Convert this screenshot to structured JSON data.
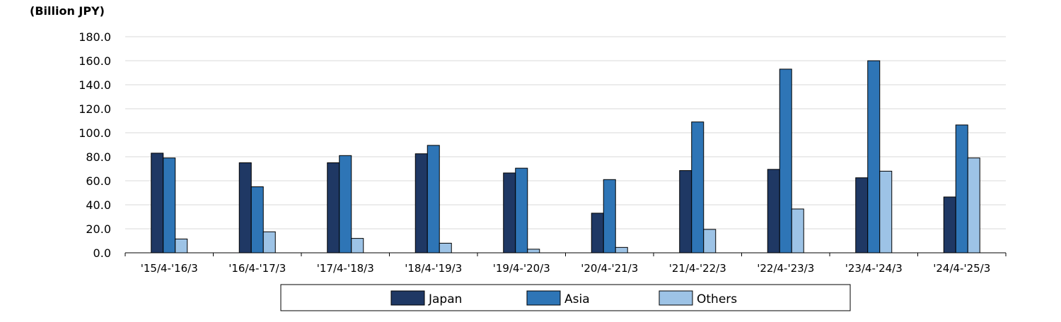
{
  "chart_data": {
    "type": "bar",
    "unit_label": "(Billion JPY)",
    "categories": [
      "'15/4-'16/3",
      "'16/4-'17/3",
      "'17/4-'18/3",
      "'18/4-'19/3",
      "'19/4-'20/3",
      "'20/4-'21/3",
      "'21/4-'22/3",
      "'22/4-'23/3",
      "'23/4-'24/3",
      "'24/4-'25/3"
    ],
    "series": [
      {
        "name": "Japan",
        "color": "#1f3864",
        "values": [
          83.0,
          75.0,
          75.0,
          82.5,
          66.5,
          33.0,
          68.5,
          69.5,
          62.5,
          46.5
        ]
      },
      {
        "name": "Asia",
        "color": "#2e75b6",
        "values": [
          79.0,
          55.0,
          81.0,
          89.5,
          70.5,
          61.0,
          109.0,
          153.0,
          160.0,
          106.5
        ]
      },
      {
        "name": "Others",
        "color": "#9dc3e6",
        "values": [
          11.5,
          17.5,
          12.0,
          8.0,
          3.0,
          4.5,
          19.5,
          36.5,
          68.0,
          79.0
        ]
      }
    ],
    "yticks": [
      "0.0",
      "20.0",
      "40.0",
      "60.0",
      "80.0",
      "100.0",
      "120.0",
      "140.0",
      "160.0",
      "180.0"
    ],
    "ylim": [
      0,
      180
    ],
    "grid": true,
    "legend_position": "bottom"
  }
}
